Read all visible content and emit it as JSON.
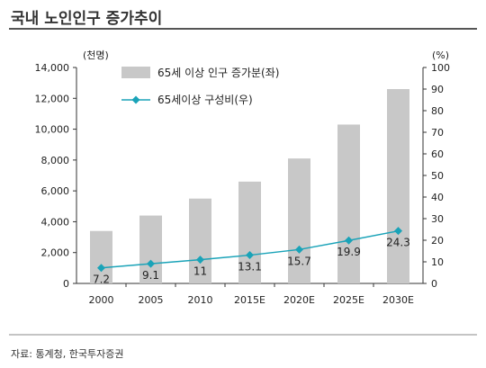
{
  "title": "국내 노인인구 증가추이",
  "source": "자료: 통계청, 한국투자증권",
  "colors": {
    "bar": "#c8c8c8",
    "line": "#1aa3b8",
    "title_rule": "#555555",
    "axis": "#333333"
  },
  "chart_data": {
    "type": "bar",
    "categories": [
      "2000",
      "2005",
      "2010",
      "2015E",
      "2020E",
      "2025E",
      "2030E"
    ],
    "series": [
      {
        "name": "65세 이상 인구 증가분(좌)",
        "type": "bar",
        "axis": "left",
        "values": [
          3400,
          4400,
          5500,
          6600,
          8100,
          10300,
          12600
        ]
      },
      {
        "name": "65세이상 구성비(우)",
        "type": "line",
        "axis": "right",
        "values": [
          7.2,
          9.1,
          11,
          13.1,
          15.7,
          19.9,
          24.3
        ],
        "labels": [
          "7.2",
          "9.1",
          "11",
          "13.1",
          "15.7",
          "19.9",
          "24.3"
        ]
      }
    ],
    "y_left": {
      "label": "(천명)",
      "range": [
        0,
        14000
      ],
      "ticks": [
        "0",
        "2,000",
        "4,000",
        "6,000",
        "8,000",
        "10,000",
        "12,000",
        "14,000"
      ]
    },
    "y_right": {
      "label": "(%)",
      "range": [
        0,
        100
      ],
      "ticks": [
        "0",
        "10",
        "20",
        "30",
        "40",
        "50",
        "60",
        "70",
        "80",
        "90",
        "100"
      ]
    },
    "grid": false,
    "legend": "top-left"
  }
}
